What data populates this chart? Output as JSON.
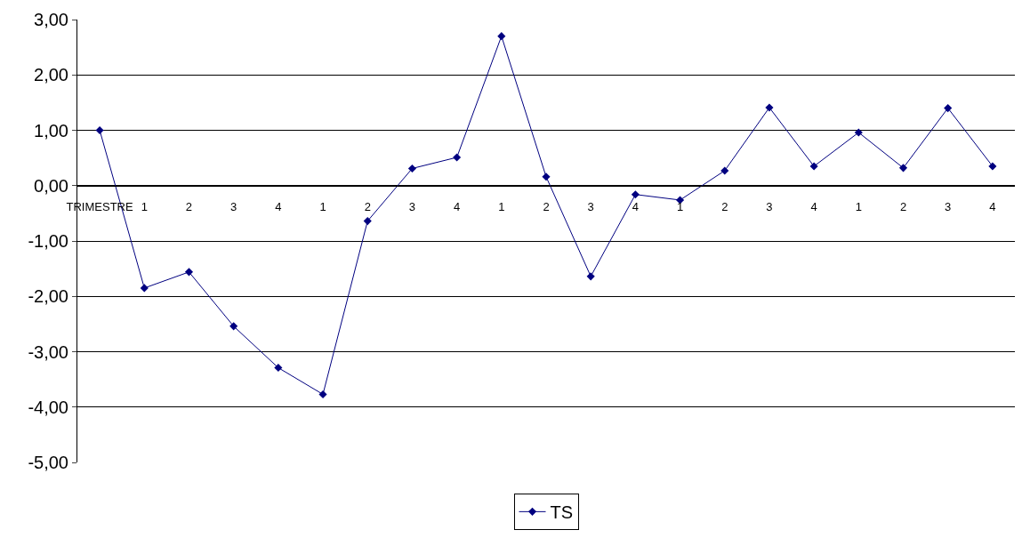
{
  "chart_data": {
    "type": "line",
    "categories": [
      "TRIMESTRE",
      "1",
      "2",
      "3",
      "4",
      "1",
      "2",
      "3",
      "4",
      "1",
      "2",
      "3",
      "4",
      "1",
      "2",
      "3",
      "4",
      "1",
      "2",
      "3",
      "4"
    ],
    "series": [
      {
        "name": "TS",
        "color": "#000080",
        "values": [
          1.0,
          -1.85,
          -1.56,
          -2.54,
          -3.29,
          -3.77,
          -0.64,
          0.31,
          0.51,
          2.7,
          0.16,
          -1.64,
          -0.16,
          -0.26,
          0.27,
          1.41,
          0.35,
          0.96,
          0.32,
          1.4,
          0.35
        ]
      }
    ],
    "ylim": [
      -5,
      3
    ],
    "yticks": [
      {
        "value": -5,
        "label": "-5,00"
      },
      {
        "value": -4,
        "label": "-4,00"
      },
      {
        "value": -3,
        "label": "-3,00"
      },
      {
        "value": -2,
        "label": "-2,00"
      },
      {
        "value": -1,
        "label": "-1,00"
      },
      {
        "value": 0,
        "label": "0,00"
      },
      {
        "value": 1,
        "label": "1,00"
      },
      {
        "value": 2,
        "label": "2,00"
      },
      {
        "value": 3,
        "label": "3,00"
      }
    ],
    "grid": "y",
    "legend": "bottom",
    "marker": "diamond",
    "line_style": "solid"
  }
}
